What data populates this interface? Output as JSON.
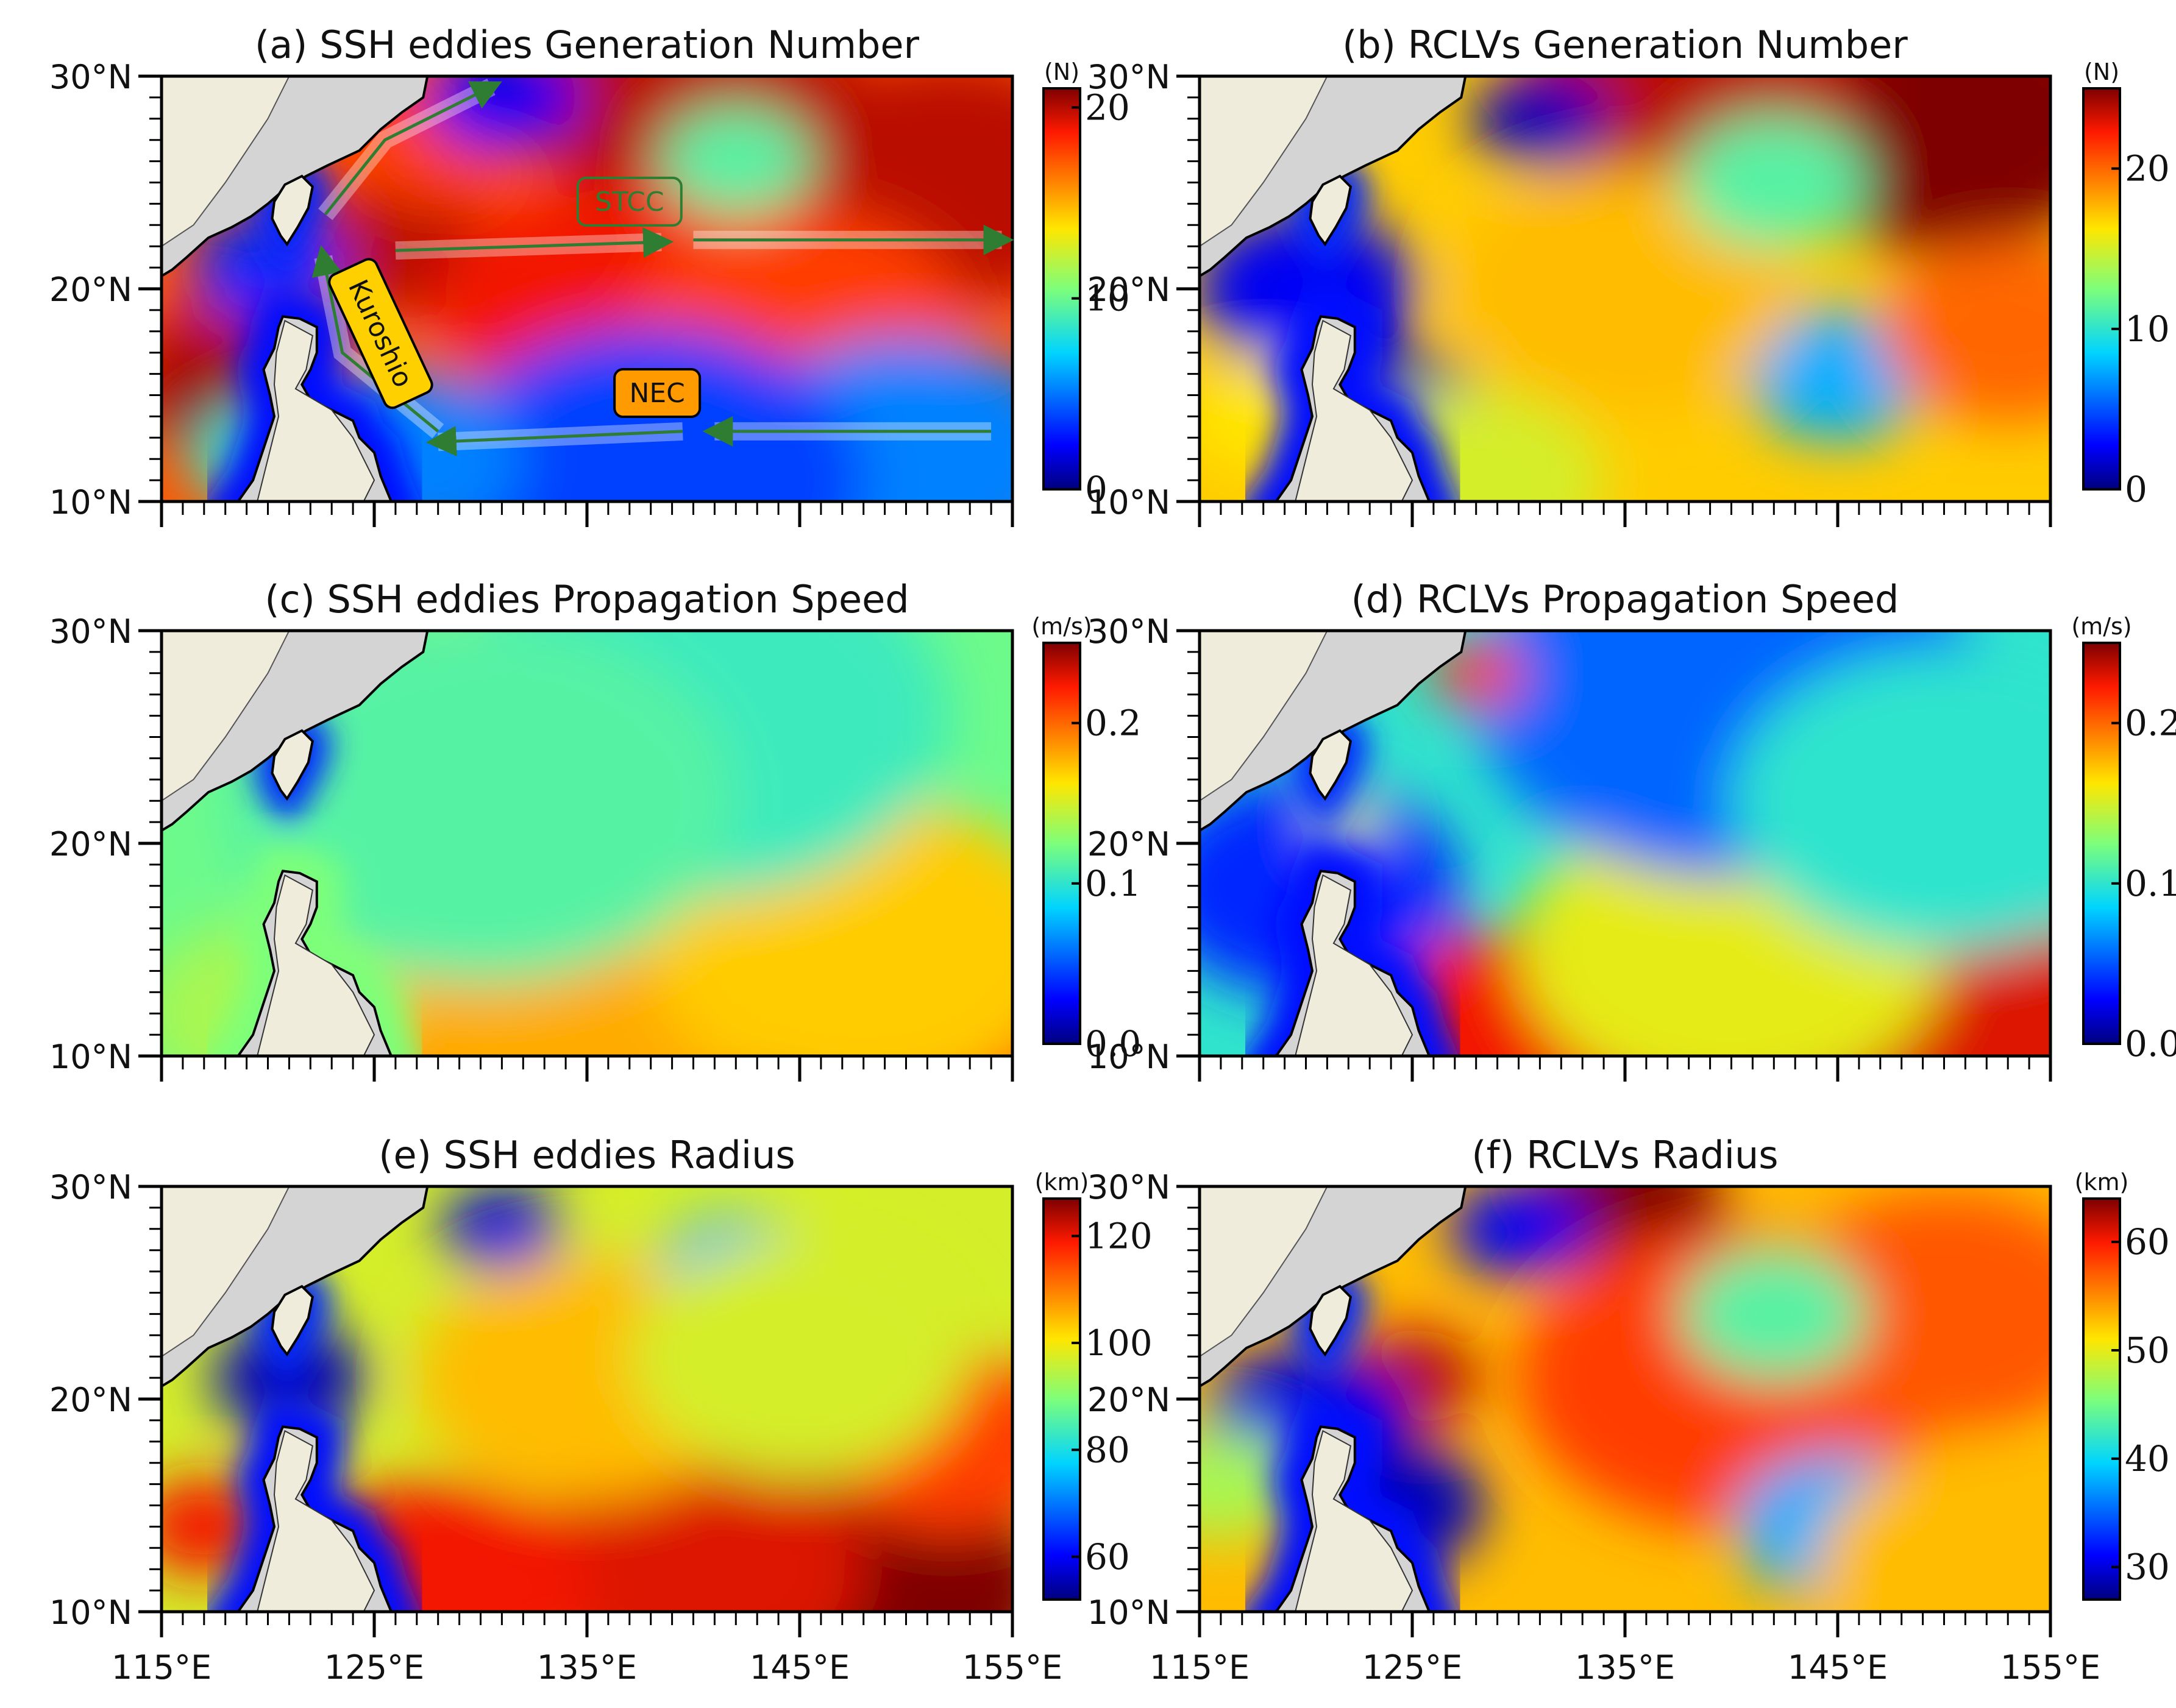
{
  "figure": {
    "panels": [
      {
        "id": "a",
        "title": "(a) SSH eddies Generation Number",
        "unit": "(N)",
        "cbar_ticks": [
          "0",
          "10",
          "20"
        ],
        "cbar_range": [
          0,
          21
        ]
      },
      {
        "id": "b",
        "title": "(b) RCLVs Generation Number",
        "unit": "(N)",
        "cbar_ticks": [
          "0",
          "10",
          "20"
        ],
        "cbar_range": [
          0,
          25
        ]
      },
      {
        "id": "c",
        "title": "(c) SSH eddies Propagation Speed",
        "unit": "(m/s)",
        "cbar_ticks": [
          "0.0",
          "0.1",
          "0.2"
        ],
        "cbar_range": [
          0,
          0.25
        ]
      },
      {
        "id": "d",
        "title": "(d) RCLVs Propagation Speed",
        "unit": "(m/s)",
        "cbar_ticks": [
          "0.0",
          "0.1",
          "0.2"
        ],
        "cbar_range": [
          0,
          0.25
        ]
      },
      {
        "id": "e",
        "title": "(e) SSH eddies Radius",
        "unit": "(km)",
        "cbar_ticks": [
          "60",
          "80",
          "100",
          "120"
        ],
        "cbar_range": [
          52,
          127
        ]
      },
      {
        "id": "f",
        "title": "(f) RCLVs Radius",
        "unit": "(km)",
        "cbar_ticks": [
          "30",
          "40",
          "50",
          "60"
        ],
        "cbar_range": [
          27,
          64
        ]
      }
    ],
    "lat_labels": [
      "30°N",
      "20°N",
      "10°N"
    ],
    "lon_labels": [
      "115°E",
      "125°E",
      "135°E",
      "145°E",
      "155°E"
    ],
    "annotations": {
      "stcc": "STCC",
      "nec": "NEC",
      "kuroshio": "Kuroshio"
    }
  },
  "chart_data": [
    {
      "type": "heatmap",
      "title": "(a) SSH eddies Generation Number",
      "colorbar_label": "(N)",
      "xlabel": "",
      "ylabel": "",
      "x_range": [
        "115°E",
        "155°E"
      ],
      "y_range": [
        "10°N",
        "30°N"
      ],
      "value_range": [
        0,
        21
      ],
      "colormap": "jet",
      "colorbar_ticks": [
        0,
        10,
        20
      ],
      "features": [
        {
          "region": "Kuroshio east of Taiwan / Luzon Strait",
          "value": 18
        },
        {
          "region": "central basin 20°N",
          "value": 17
        },
        {
          "region": "northeast corner",
          "value": 19
        },
        {
          "region": "southern band 10-13°N",
          "value": 4
        },
        {
          "region": "South China Sea west of Luzon",
          "value": 18
        }
      ],
      "annotations": [
        "STCC",
        "NEC",
        "Kuroshio"
      ]
    },
    {
      "type": "heatmap",
      "title": "(b) RCLVs Generation Number",
      "colorbar_label": "(N)",
      "x_range": [
        "115°E",
        "155°E"
      ],
      "y_range": [
        "10°N",
        "30°N"
      ],
      "value_range": [
        0,
        25
      ],
      "colormap": "jet",
      "colorbar_ticks": [
        0,
        10,
        20
      ],
      "features": [
        {
          "region": "northeast corner",
          "value": 25
        },
        {
          "region": "near 145°E 14°N",
          "value": 8
        },
        {
          "region": "west of Luzon",
          "value": 2
        }
      ]
    },
    {
      "type": "heatmap",
      "title": "(c) SSH eddies Propagation Speed",
      "colorbar_label": "(m/s)",
      "x_range": [
        "115°E",
        "155°E"
      ],
      "y_range": [
        "10°N",
        "30°N"
      ],
      "value_range": [
        0,
        0.25
      ],
      "colormap": "jet",
      "colorbar_ticks": [
        0.0,
        0.1,
        0.2
      ],
      "features": [
        {
          "region": "southern band 10-13°N",
          "value": 0.22
        },
        {
          "region": "mid band 15°N",
          "value": 0.17
        },
        {
          "region": "north 25-30°N",
          "value": 0.1
        }
      ]
    },
    {
      "type": "heatmap",
      "title": "(d) RCLVs Propagation Speed",
      "colorbar_label": "(m/s)",
      "x_range": [
        "115°E",
        "155°E"
      ],
      "y_range": [
        "10°N",
        "30°N"
      ],
      "value_range": [
        0,
        0.25
      ],
      "colormap": "jet",
      "colorbar_ticks": [
        0.0,
        0.1,
        0.2
      ],
      "features": [
        {
          "region": "southern band 10-13°N",
          "value": 0.22
        },
        {
          "region": "north 25-30°N",
          "value": 0.06
        }
      ]
    },
    {
      "type": "heatmap",
      "title": "(e) SSH eddies Radius",
      "colorbar_label": "(km)",
      "x_range": [
        "115°E",
        "155°E"
      ],
      "y_range": [
        "10°N",
        "30°N"
      ],
      "value_range": [
        52,
        127
      ],
      "colormap": "jet",
      "colorbar_ticks": [
        60,
        80,
        100,
        120
      ],
      "features": [
        {
          "region": "southeast corner",
          "value": 127
        },
        {
          "region": "central basin",
          "value": 97
        },
        {
          "region": "near 142°E 26°N",
          "value": 75
        }
      ]
    },
    {
      "type": "heatmap",
      "title": "(f) RCLVs Radius",
      "colorbar_label": "(km)",
      "x_range": [
        "115°E",
        "155°E"
      ],
      "y_range": [
        "10°N",
        "30°N"
      ],
      "value_range": [
        27,
        64
      ],
      "colormap": "jet",
      "colorbar_ticks": [
        30,
        40,
        50,
        60
      ],
      "features": [
        {
          "region": "north near 135°E",
          "value": 64
        },
        {
          "region": "central basin",
          "value": 55
        },
        {
          "region": "near 145°E 14°N",
          "value": 38
        }
      ]
    }
  ]
}
